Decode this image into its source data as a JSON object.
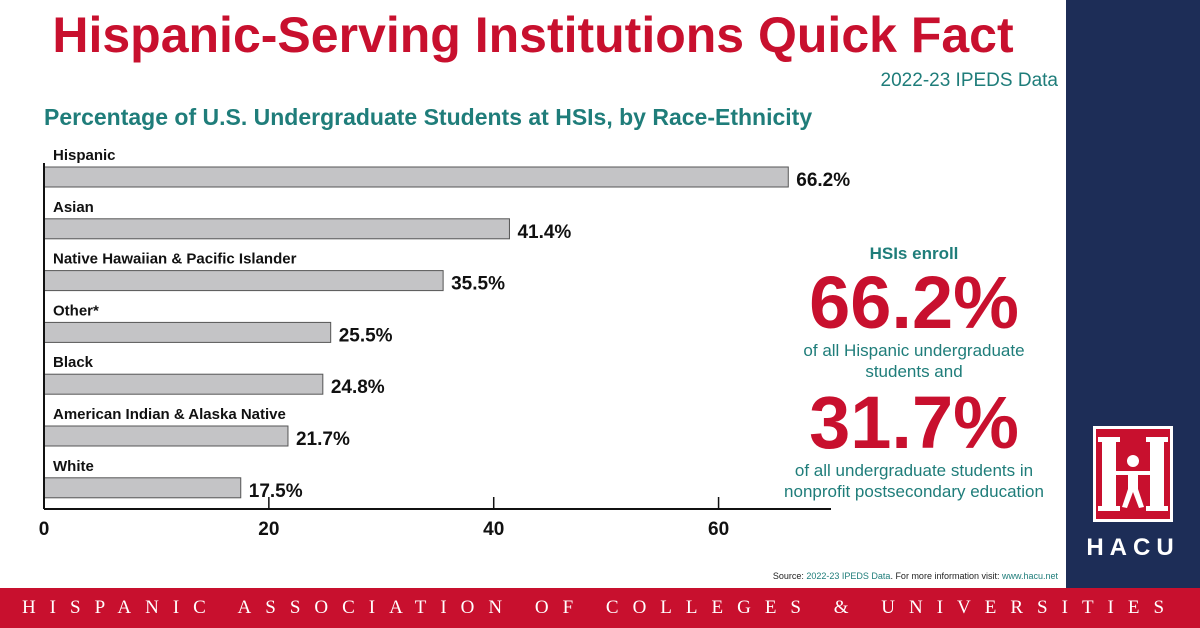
{
  "header": {
    "title": "Hispanic-Serving Institutions Quick Fact",
    "data_source": "2022-23 IPEDS Data"
  },
  "chart_data": {
    "type": "bar",
    "orientation": "horizontal",
    "title": "Percentage of U.S. Undergraduate Students at HSIs, by Race-Ethnicity",
    "categories": [
      "Hispanic",
      "Asian",
      "Native Hawaiian & Pacific Islander",
      "Other*",
      "Black",
      "American Indian & Alaska Native",
      "White"
    ],
    "values": [
      66.2,
      41.4,
      35.5,
      25.5,
      24.8,
      21.7,
      17.5
    ],
    "value_labels": [
      "66.2%",
      "41.4%",
      "35.5%",
      "25.5%",
      "24.8%",
      "21.7%",
      "17.5%"
    ],
    "xlim": [
      0,
      70
    ],
    "xticks": [
      0,
      20,
      40,
      60
    ],
    "xtick_labels": [
      "0",
      "20",
      "40",
      "60"
    ],
    "grid": false,
    "bar_color": "#c4c4c6"
  },
  "callout": {
    "intro": "HSIs enroll",
    "stat1": "66.2%",
    "desc1_line1": "of all Hispanic undergraduate",
    "desc1_line2": "students and",
    "stat2": "31.7%",
    "desc2_line1": "of all undergraduate students in",
    "desc2_line2": "nonprofit postsecondary education"
  },
  "source_note": {
    "prefix": "Source: ",
    "source": "2022-23 IPEDS Data",
    "middle": ". For more information visit: ",
    "url": "www.hacu.net"
  },
  "logo": {
    "letter": "H",
    "text": "HACU"
  },
  "footer": {
    "org_name": "HISPANIC ASSOCIATION OF COLLEGES & UNIVERSITIES"
  },
  "colors": {
    "accent_red": "#c8102e",
    "teal": "#1f7d7a",
    "navy": "#1d2d57"
  }
}
